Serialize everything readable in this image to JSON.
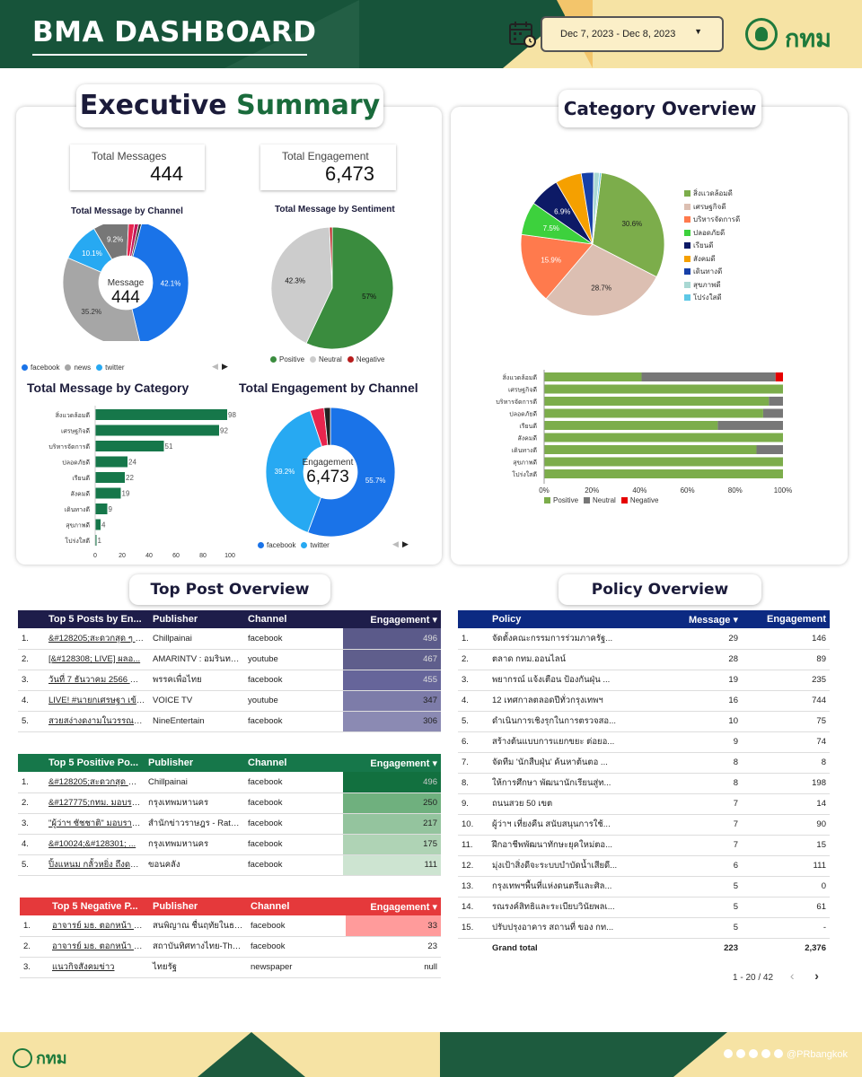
{
  "header": {
    "title": "BMA DASHBOARD",
    "date_range": "Dec 7, 2023 - Dec 8, 2023",
    "logo_text": "กทม"
  },
  "footer": {
    "logo_text": "กทม",
    "handle": "@PRbangkok"
  },
  "executive": {
    "title_part1": "Executive",
    "title_part2": "Summary",
    "kpi_messages_label": "Total Messages",
    "kpi_messages_value": "444",
    "kpi_engagement_label": "Total Engagement",
    "kpi_engagement_value": "6,473"
  },
  "msg_by_channel": {
    "title": "Total Message by Channel",
    "center_label": "Message",
    "center_value": "444",
    "slices": [
      {
        "name": "facebook",
        "value": 42.1,
        "color": "#1a73e8",
        "label": "42.1%"
      },
      {
        "name": "news",
        "value": 35.2,
        "color": "#a6a6a6",
        "label": "35.2%"
      },
      {
        "name": "twitter",
        "value": 10.1,
        "color": "#27a9f2",
        "label": "10.1%"
      },
      {
        "name": "other1",
        "value": 9.2,
        "color": "#777777",
        "label": "9.2%"
      },
      {
        "name": "other2",
        "value": 1.6,
        "color": "#e8254e",
        "label": ""
      },
      {
        "name": "other3",
        "value": 1.1,
        "color": "#c2185b",
        "label": ""
      },
      {
        "name": "other4",
        "value": 0.7,
        "color": "#333333",
        "label": ""
      }
    ],
    "legend": [
      {
        "name": "facebook",
        "color": "#1a73e8"
      },
      {
        "name": "news",
        "color": "#a6a6a6"
      },
      {
        "name": "twitter",
        "color": "#27a9f2"
      }
    ]
  },
  "msg_by_sentiment": {
    "title": "Total Message by Sentiment",
    "slices": [
      {
        "name": "Positive",
        "value": 57,
        "color": "#3a8c3e",
        "label": "57%"
      },
      {
        "name": "Neutral",
        "value": 42.3,
        "color": "#cccccc",
        "label": "42.3%"
      },
      {
        "name": "Negative",
        "value": 0.7,
        "color": "#b71c1c",
        "label": ""
      }
    ],
    "legend": [
      {
        "name": "Positive",
        "color": "#3a8c3e"
      },
      {
        "name": "Neutral",
        "color": "#cccccc"
      },
      {
        "name": "Negative",
        "color": "#b71c1c"
      }
    ]
  },
  "msg_by_category": {
    "title": "Total Message by Category",
    "chart_data": {
      "type": "bar",
      "categories": [
        "สิ่งแวดล้อมดี",
        "เศรษฐกิจดี",
        "บริหารจัดการดี",
        "ปลอดภัยดี",
        "เรียนดี",
        "สังคมดี",
        "เดินทางดี",
        "สุขภาพดี",
        "โปร่งใสดี"
      ],
      "values": [
        98,
        92,
        51,
        24,
        22,
        19,
        9,
        4,
        1
      ],
      "xlim": [
        0,
        100
      ],
      "xticks": [
        "0",
        "20",
        "40",
        "60",
        "80",
        "100"
      ],
      "color": "#16774a"
    }
  },
  "eng_by_channel": {
    "title": "Total Engagement by Channel",
    "center_label": "Engagement",
    "center_value": "6,473",
    "slices": [
      {
        "name": "facebook",
        "value": 55.7,
        "color": "#1a73e8",
        "label": "55.7%"
      },
      {
        "name": "twitter",
        "value": 39.2,
        "color": "#27a9f2",
        "label": "39.2%"
      },
      {
        "name": "other1",
        "value": 3.5,
        "color": "#e8254e",
        "label": ""
      },
      {
        "name": "other2",
        "value": 1.6,
        "color": "#222222",
        "label": ""
      }
    ],
    "legend": [
      {
        "name": "facebook",
        "color": "#1a73e8"
      },
      {
        "name": "twitter",
        "color": "#27a9f2"
      }
    ]
  },
  "category_overview": {
    "title": "Category Overview",
    "pie": [
      {
        "name": "สิ่งแวดล้อมดี",
        "value": 30.6,
        "color": "#7cad4b",
        "label": "30.6%"
      },
      {
        "name": "เศรษฐกิจดี",
        "value": 28.7,
        "color": "#dcbfb2",
        "label": "28.7%"
      },
      {
        "name": "บริหารจัดการดี",
        "value": 15.9,
        "color": "#ff7a4d",
        "label": "15.9%"
      },
      {
        "name": "ปลอดภัยดี",
        "value": 7.5,
        "color": "#3dd13d",
        "label": "7.5%"
      },
      {
        "name": "เรียนดี",
        "value": 6.9,
        "color": "#0d1a66",
        "label": "6.9%"
      },
      {
        "name": "สังคมดี",
        "value": 5.9,
        "color": "#f5a000",
        "label": ""
      },
      {
        "name": "เดินทางดี",
        "value": 2.8,
        "color": "#1740a8",
        "label": ""
      },
      {
        "name": "สุขภาพดี",
        "value": 1.3,
        "color": "#a9d8d3",
        "label": ""
      },
      {
        "name": "โปร่งใสดี",
        "value": 0.4,
        "color": "#5ec8e6",
        "label": ""
      }
    ],
    "stacked": {
      "type": "bar",
      "categories": [
        "สิ่งแวดล้อมดี",
        "เศรษฐกิจดี",
        "บริหารจัดการดี",
        "ปลอดภัยดี",
        "เรียนดี",
        "สังคมดี",
        "เดินทางดี",
        "สุขภาพดี",
        "โปร่งใสดี"
      ],
      "series": [
        {
          "name": "Positive",
          "color": "#7cad4b",
          "values": [
            40.8,
            100,
            94.1,
            91.7,
            72.7,
            100,
            88.9,
            100,
            100
          ]
        },
        {
          "name": "Neutral",
          "color": "#777777",
          "values": [
            56.1,
            0,
            5.9,
            8.3,
            27.3,
            0,
            11.1,
            0,
            0
          ]
        },
        {
          "name": "Negative",
          "color": "#e60000",
          "values": [
            3.1,
            0,
            0,
            0,
            0,
            0,
            0,
            0,
            0
          ]
        }
      ],
      "xticks": [
        "0%",
        "20%",
        "40%",
        "60%",
        "80%",
        "100%"
      ]
    }
  },
  "top_post": {
    "title": "Top Post Overview",
    "top5": {
      "headers": [
        "Top 5 Posts by En...",
        "Publisher",
        "Channel",
        "Engagement"
      ],
      "rows": [
        {
          "n": "1.",
          "post": "&#128205;สะดวกสุด ๆ ชั่...",
          "publisher": "Chillpainai",
          "channel": "facebook",
          "eng": "496"
        },
        {
          "n": "2.",
          "post": "[&#128308; LIVE] ผลอ...",
          "publisher": "AMARINTV : อมรินทร์...",
          "channel": "youtube",
          "eng": "467"
        },
        {
          "n": "3.",
          "post": "วันที่ 7 ธันวาคม 2566 ณ ...",
          "publisher": "พรรคเพื่อไทย",
          "channel": "facebook",
          "eng": "455"
        },
        {
          "n": "4.",
          "post": "LIVE! #นายกเศรษฐา เข้า 'ค...",
          "publisher": "VOICE TV",
          "channel": "youtube",
          "eng": "347"
        },
        {
          "n": "5.",
          "post": "สวยสง่างดงามในวรรณคดี...",
          "publisher": "NineEntertain",
          "channel": "facebook",
          "eng": "306"
        }
      ]
    },
    "positive": {
      "headers": [
        "Top 5 Positive Po...",
        "Publisher",
        "Channel",
        "Engagement"
      ],
      "rows": [
        {
          "n": "1.",
          "post": "&#128205;สะดวกสุด ๆ ชั่...",
          "publisher": "Chillpainai",
          "channel": "facebook",
          "eng": "496"
        },
        {
          "n": "2.",
          "post": "&#127775;กทม. มอบรา...",
          "publisher": "กรุงเทพมหานคร",
          "channel": "facebook",
          "eng": "250"
        },
        {
          "n": "3.",
          "post": "\"ผู้ว่าฯ ชัชชาติ\" มอบรางวัล...",
          "publisher": "สำนักข่าวราษฎร - Ratsa...",
          "channel": "facebook",
          "eng": "217"
        },
        {
          "n": "4.",
          "post": "&#10024;&#128301; ...",
          "publisher": "กรุงเทพมหานคร",
          "channel": "facebook",
          "eng": "175"
        },
        {
          "n": "5.",
          "post": "ปิ้งแหนม กลั้วหยิ่ง ถึงดาดหรอนอ...",
          "publisher": "ขอนคลัง",
          "channel": "facebook",
          "eng": "111"
        }
      ]
    },
    "negative": {
      "headers": [
        "Top 5 Negative P...",
        "Publisher",
        "Channel",
        "Engagement"
      ],
      "rows": [
        {
          "n": "1.",
          "post": "อาจารย์ มธ. ตอกหน้า ชัชช...",
          "publisher": "สนพิญาณ ชื่นฤทัยในธรรม",
          "channel": "facebook",
          "eng": "33"
        },
        {
          "n": "2.",
          "post": "อาจารย์ มธ. ตอกหน้า ชัชช...",
          "publisher": "สถาบันทิศทางไทย-Thai ...",
          "channel": "facebook",
          "eng": "23"
        },
        {
          "n": "3.",
          "post": "แนวกิจสังคมข่าว",
          "publisher": "ไทยรัฐ",
          "channel": "newspaper",
          "eng": "null"
        }
      ]
    }
  },
  "policy": {
    "title": "Policy Overview",
    "headers": [
      "Policy",
      "Message",
      "Engagement"
    ],
    "rows": [
      {
        "n": "1.",
        "policy": "จัดตั้งคณะกรรมการร่วมภาครัฐ...",
        "msg": "29",
        "eng": "146"
      },
      {
        "n": "2.",
        "policy": "ตลาด กทม.ออนไลน์",
        "msg": "28",
        "eng": "89"
      },
      {
        "n": "3.",
        "policy": "พยากรณ์ แจ้งเตือน ป้องกันฝุ่น ...",
        "msg": "19",
        "eng": "235"
      },
      {
        "n": "4.",
        "policy": "12 เทศกาลตลอดปีทั่วกรุงเทพฯ",
        "msg": "16",
        "eng": "744"
      },
      {
        "n": "5.",
        "policy": "ดำเนินการเชิงรุกในการตรวจสอ...",
        "msg": "10",
        "eng": "75"
      },
      {
        "n": "6.",
        "policy": "สร้างต้นแบบการแยกขยะ ต่อยอ...",
        "msg": "9",
        "eng": "74"
      },
      {
        "n": "7.",
        "policy": "จัดทีม 'นักสืบฝุ่น' ค้นหาต้นตอ ...",
        "msg": "8",
        "eng": "8"
      },
      {
        "n": "8.",
        "policy": "ให้การศึกษา พัฒนานักเรียนสู่ท...",
        "msg": "8",
        "eng": "198"
      },
      {
        "n": "9.",
        "policy": "ถนนสวย 50 เขต",
        "msg": "7",
        "eng": "14"
      },
      {
        "n": "10.",
        "policy": "ผู้ว่าฯ เที่ยงคืน สนับสนุนการใช้...",
        "msg": "7",
        "eng": "90"
      },
      {
        "n": "11.",
        "policy": "ฝึกอาชีพพัฒนาทักษะยุคใหม่ตอ...",
        "msg": "7",
        "eng": "15"
      },
      {
        "n": "12.",
        "policy": "มุ่งเป้าสิ่งดีจะระบบบำบัดน้ำเสียดี...",
        "msg": "6",
        "eng": "111"
      },
      {
        "n": "13.",
        "policy": "กรุงเทพฯพื้นที่แห่งดนตรีและศิล...",
        "msg": "5",
        "eng": "0"
      },
      {
        "n": "14.",
        "policy": "รณรงค์สิทธิและระเบียบวินัยพลเ...",
        "msg": "5",
        "eng": "61"
      },
      {
        "n": "15.",
        "policy": "ปรับปรุงอาคาร สถานที่ ของ กท...",
        "msg": "5",
        "eng": "-"
      }
    ],
    "total_label": "Grand total",
    "total_msg": "223",
    "total_eng": "2,376",
    "pager": "1 - 20 / 42"
  }
}
